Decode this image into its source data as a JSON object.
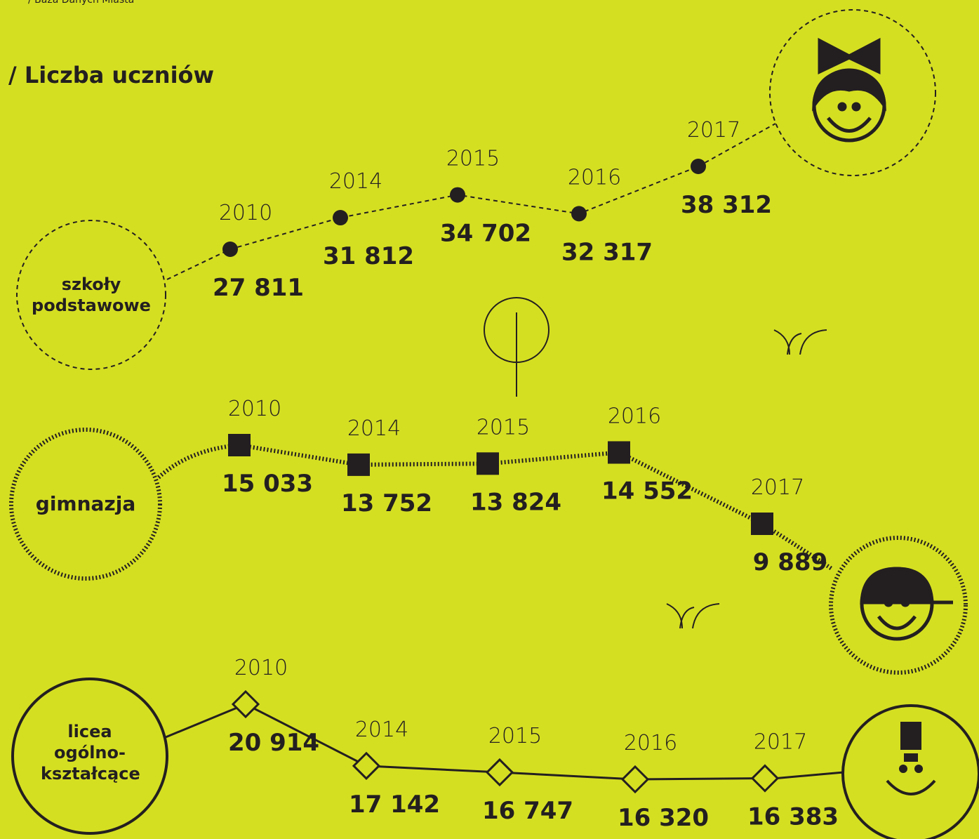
{
  "chart_data": {
    "type": "line",
    "source": "/ Baza Danych Miasta",
    "title": "/ Liczba uczniów",
    "categories": [
      "2010",
      "2014",
      "2015",
      "2016",
      "2017"
    ],
    "series": [
      {
        "name": "szkoły podstawowe",
        "marker": "circle",
        "line": "dashed",
        "color": "#231f20",
        "values": [
          27811,
          31812,
          34702,
          32317,
          38312
        ],
        "value_labels": [
          "27 811",
          "31 812",
          "34 702",
          "32 317",
          "38 312"
        ]
      },
      {
        "name": "gimnazja",
        "marker": "square",
        "line": "zigzag",
        "color": "#231f20",
        "values": [
          15033,
          13752,
          13824,
          14552,
          9889
        ],
        "value_labels": [
          "15 033",
          "13 752",
          "13 824",
          "14 552",
          "9 889"
        ]
      },
      {
        "name": "licea ogólno-kształcące",
        "marker": "diamond",
        "line": "solid",
        "color": "#231f20",
        "values": [
          20914,
          17142,
          16747,
          16320,
          16383
        ],
        "value_labels": [
          "20 914",
          "17 142",
          "16 747",
          "16 320",
          "16 383"
        ]
      }
    ]
  }
}
